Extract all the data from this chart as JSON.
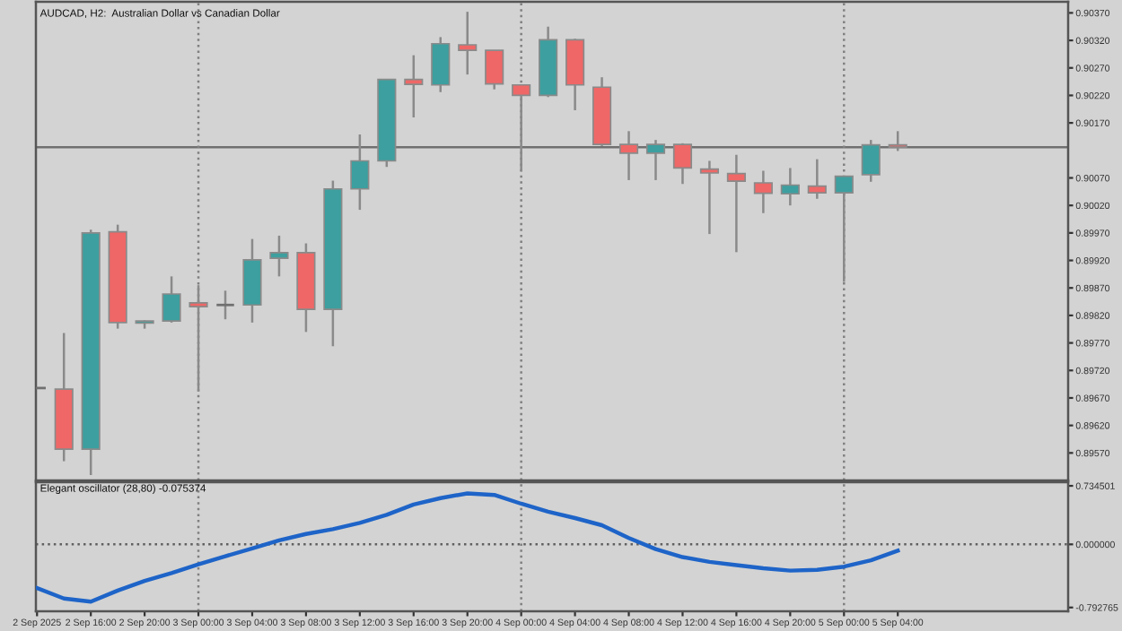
{
  "chart_data": [
    {
      "type": "candlestick",
      "title": "AUDCAD, H2:  Australian Dollar vs Canadian Dollar",
      "tick_labels": "y",
      "grid": false,
      "x": [
        "2025-09-02T12:00",
        "2025-09-02T14:00",
        "2025-09-02T16:00",
        "2025-09-02T18:00",
        "2025-09-02T20:00",
        "2025-09-02T22:00",
        "2025-09-03T00:00",
        "2025-09-03T02:00",
        "2025-09-03T04:00",
        "2025-09-03T06:00",
        "2025-09-03T08:00",
        "2025-09-03T10:00",
        "2025-09-03T12:00",
        "2025-09-03T14:00",
        "2025-09-03T16:00",
        "2025-09-03T18:00",
        "2025-09-03T20:00",
        "2025-09-03T22:00",
        "2025-09-04T00:00",
        "2025-09-04T02:00",
        "2025-09-04T04:00",
        "2025-09-04T06:00",
        "2025-09-04T08:00",
        "2025-09-04T10:00",
        "2025-09-04T12:00",
        "2025-09-04T14:00",
        "2025-09-04T16:00",
        "2025-09-04T18:00",
        "2025-09-04T20:00",
        "2025-09-04T22:00",
        "2025-09-05T00:00",
        "2025-09-05T02:00",
        "2025-09-05T04:00"
      ],
      "ohlc": [
        [
          0.89688,
          0.89688,
          0.89688,
          0.89688
        ],
        [
          0.89686,
          0.89788,
          0.89555,
          0.89577
        ],
        [
          0.89577,
          0.89976,
          0.8953,
          0.8997
        ],
        [
          0.89972,
          0.89985,
          0.89796,
          0.89807
        ],
        [
          0.89806,
          0.89811,
          0.89796,
          0.8981
        ],
        [
          0.8981,
          0.89891,
          0.89807,
          0.89859
        ],
        [
          0.89843,
          0.89875,
          0.89682,
          0.89836
        ],
        [
          0.89839,
          0.89865,
          0.89813,
          0.89839
        ],
        [
          0.89839,
          0.89959,
          0.89807,
          0.89921
        ],
        [
          0.89924,
          0.89965,
          0.89891,
          0.89934
        ],
        [
          0.89934,
          0.89951,
          0.8979,
          0.89831
        ],
        [
          0.89831,
          0.90065,
          0.89764,
          0.9005
        ],
        [
          0.9005,
          0.90149,
          0.90012,
          0.90101
        ],
        [
          0.90101,
          0.90249,
          0.9009,
          0.90249
        ],
        [
          0.90249,
          0.90293,
          0.9018,
          0.9024
        ],
        [
          0.90239,
          0.90326,
          0.90226,
          0.90314
        ],
        [
          0.90312,
          0.90372,
          0.90258,
          0.90302
        ],
        [
          0.90302,
          0.90302,
          0.90231,
          0.90241
        ],
        [
          0.90239,
          0.90239,
          0.90082,
          0.9022
        ],
        [
          0.9022,
          0.90345,
          0.90217,
          0.90321
        ],
        [
          0.90321,
          0.90323,
          0.90193,
          0.90239
        ],
        [
          0.90235,
          0.90253,
          0.90128,
          0.90131
        ],
        [
          0.90131,
          0.90155,
          0.90066,
          0.90115
        ],
        [
          0.90115,
          0.90139,
          0.90066,
          0.90131
        ],
        [
          0.90131,
          0.90133,
          0.90059,
          0.90088
        ],
        [
          0.90086,
          0.90101,
          0.89968,
          0.90079
        ],
        [
          0.90078,
          0.90112,
          0.89935,
          0.90064
        ],
        [
          0.90061,
          0.90083,
          0.90006,
          0.90042
        ],
        [
          0.90041,
          0.90088,
          0.9002,
          0.90057
        ],
        [
          0.90055,
          0.90104,
          0.90032,
          0.90043
        ],
        [
          0.90043,
          0.90073,
          0.89881,
          0.90073
        ],
        [
          0.90076,
          0.90139,
          0.90063,
          0.9013
        ],
        [
          0.9013,
          0.90155,
          0.90119,
          0.90126
        ]
      ],
      "colors": [
        "#707070",
        "#ef6767",
        "#3d9f9f",
        "#ef6767",
        "#3d9f9f",
        "#3d9f9f",
        "#ef6767",
        "#707070",
        "#3d9f9f",
        "#3d9f9f",
        "#ef6767",
        "#3d9f9f",
        "#3d9f9f",
        "#3d9f9f",
        "#ef6767",
        "#3d9f9f",
        "#ef6767",
        "#ef6767",
        "#ef6767",
        "#3d9f9f",
        "#ef6767",
        "#ef6767",
        "#ef6767",
        "#3d9f9f",
        "#ef6767",
        "#ef6767",
        "#ef6767",
        "#ef6767",
        "#3d9f9f",
        "#ef6767",
        "#3d9f9f",
        "#3d9f9f",
        "#ef6767"
      ],
      "xlim": [
        "2025-09-02T11:55",
        "2025-09-05T16:40"
      ],
      "ylim": [
        0.8952,
        0.9039
      ],
      "yticks": [
        {
          "value": 0.8957,
          "label": "0.89570"
        },
        {
          "value": 0.8962,
          "label": "0.89620"
        },
        {
          "value": 0.8967,
          "label": "0.89670"
        },
        {
          "value": 0.8972,
          "label": "0.89720"
        },
        {
          "value": 0.8977,
          "label": "0.89770"
        },
        {
          "value": 0.8982,
          "label": "0.89820"
        },
        {
          "value": 0.8987,
          "label": "0.89870"
        },
        {
          "value": 0.8992,
          "label": "0.89920"
        },
        {
          "value": 0.8997,
          "label": "0.89970"
        },
        {
          "value": 0.9002,
          "label": "0.90020"
        },
        {
          "value": 0.9007,
          "label": "0.90070"
        },
        {
          "value": 0.9017,
          "label": "0.90170"
        },
        {
          "value": 0.9022,
          "label": "0.90220"
        },
        {
          "value": 0.9027,
          "label": "0.90270"
        },
        {
          "value": 0.9032,
          "label": "0.90320"
        },
        {
          "value": 0.9037,
          "label": "0.90370"
        }
      ],
      "ref_lines": [
        {
          "axis": "y",
          "value": 0.90126,
          "color": "#707070",
          "line_style": "solid"
        },
        {
          "axis": "x",
          "value": "2025-09-03T00:00",
          "color": "#808080",
          "line_style": "dotted"
        },
        {
          "axis": "x",
          "value": "2025-09-04T00:00",
          "color": "#808080",
          "line_style": "dotted"
        },
        {
          "axis": "x",
          "value": "2025-09-05T00:00",
          "color": "#808080",
          "line_style": "dotted"
        }
      ]
    },
    {
      "type": "line",
      "title": "Elegant oscillator (28,80) -0.075374",
      "grid": false,
      "marker": "none",
      "x": [
        "2025-09-02T12:00",
        "2025-09-02T14:00",
        "2025-09-02T16:00",
        "2025-09-02T18:00",
        "2025-09-02T20:00",
        "2025-09-02T22:00",
        "2025-09-03T00:00",
        "2025-09-03T02:00",
        "2025-09-03T04:00",
        "2025-09-03T06:00",
        "2025-09-03T08:00",
        "2025-09-03T10:00",
        "2025-09-03T12:00",
        "2025-09-03T14:00",
        "2025-09-03T16:00",
        "2025-09-03T18:00",
        "2025-09-03T20:00",
        "2025-09-03T22:00",
        "2025-09-04T00:00",
        "2025-09-04T02:00",
        "2025-09-04T04:00",
        "2025-09-04T06:00",
        "2025-09-04T08:00",
        "2025-09-04T10:00",
        "2025-09-04T12:00",
        "2025-09-04T14:00",
        "2025-09-04T16:00",
        "2025-09-04T18:00",
        "2025-09-04T20:00",
        "2025-09-04T22:00",
        "2025-09-05T00:00",
        "2025-09-05T02:00",
        "2025-09-05T04:00"
      ],
      "series": [
        {
          "color": "#1e64c8",
          "values": [
            -0.55,
            -0.68,
            -0.72,
            -0.58,
            -0.46,
            -0.36,
            -0.25,
            -0.15,
            -0.05,
            0.05,
            0.13,
            0.19,
            0.27,
            0.37,
            0.5,
            0.58,
            0.64,
            0.62,
            0.51,
            0.41,
            0.33,
            0.24,
            0.08,
            -0.06,
            -0.16,
            -0.22,
            -0.26,
            -0.3,
            -0.33,
            -0.32,
            -0.28,
            -0.2,
            -0.08
          ]
        }
      ],
      "xlim": [
        "2025-09-02T11:55",
        "2025-09-05T16:40"
      ],
      "ylim": [
        -0.84,
        0.78
      ],
      "yticks": [
        {
          "value": -0.792765,
          "label": "-0.792765"
        },
        {
          "value": 0,
          "label": "0.000000"
        },
        {
          "value": 0.734501,
          "label": "0.734501"
        }
      ],
      "xticks": [
        {
          "value": "2025-09-02T12:00",
          "label": "2 Sep 2025"
        },
        {
          "value": "2025-09-02T16:00",
          "label": "2 Sep 16:00"
        },
        {
          "value": "2025-09-02T20:00",
          "label": "2 Sep 20:00"
        },
        {
          "value": "2025-09-03T00:00",
          "label": "3 Sep 00:00"
        },
        {
          "value": "2025-09-03T04:00",
          "label": "3 Sep 04:00"
        },
        {
          "value": "2025-09-03T08:00",
          "label": "3 Sep 08:00"
        },
        {
          "value": "2025-09-03T12:00",
          "label": "3 Sep 12:00"
        },
        {
          "value": "2025-09-03T16:00",
          "label": "3 Sep 16:00"
        },
        {
          "value": "2025-09-03T20:00",
          "label": "3 Sep 20:00"
        },
        {
          "value": "2025-09-04T00:00",
          "label": "4 Sep 00:00"
        },
        {
          "value": "2025-09-04T04:00",
          "label": "4 Sep 04:00"
        },
        {
          "value": "2025-09-04T08:00",
          "label": "4 Sep 08:00"
        },
        {
          "value": "2025-09-04T12:00",
          "label": "4 Sep 12:00"
        },
        {
          "value": "2025-09-04T16:00",
          "label": "4 Sep 16:00"
        },
        {
          "value": "2025-09-04T20:00",
          "label": "4 Sep 20:00"
        },
        {
          "value": "2025-09-05T00:00",
          "label": "5 Sep 00:00"
        },
        {
          "value": "2025-09-05T04:00",
          "label": "5 Sep 04:00"
        }
      ],
      "ref_lines": [
        {
          "axis": "y",
          "value": 0,
          "color": "#606060",
          "line_style": "dotted"
        },
        {
          "axis": "x",
          "value": "2025-09-03T00:00",
          "color": "#808080",
          "line_style": "dotted"
        },
        {
          "axis": "x",
          "value": "2025-09-04T00:00",
          "color": "#808080",
          "line_style": "dotted"
        },
        {
          "axis": "x",
          "value": "2025-09-05T00:00",
          "color": "#808080",
          "line_style": "dotted"
        }
      ]
    }
  ]
}
